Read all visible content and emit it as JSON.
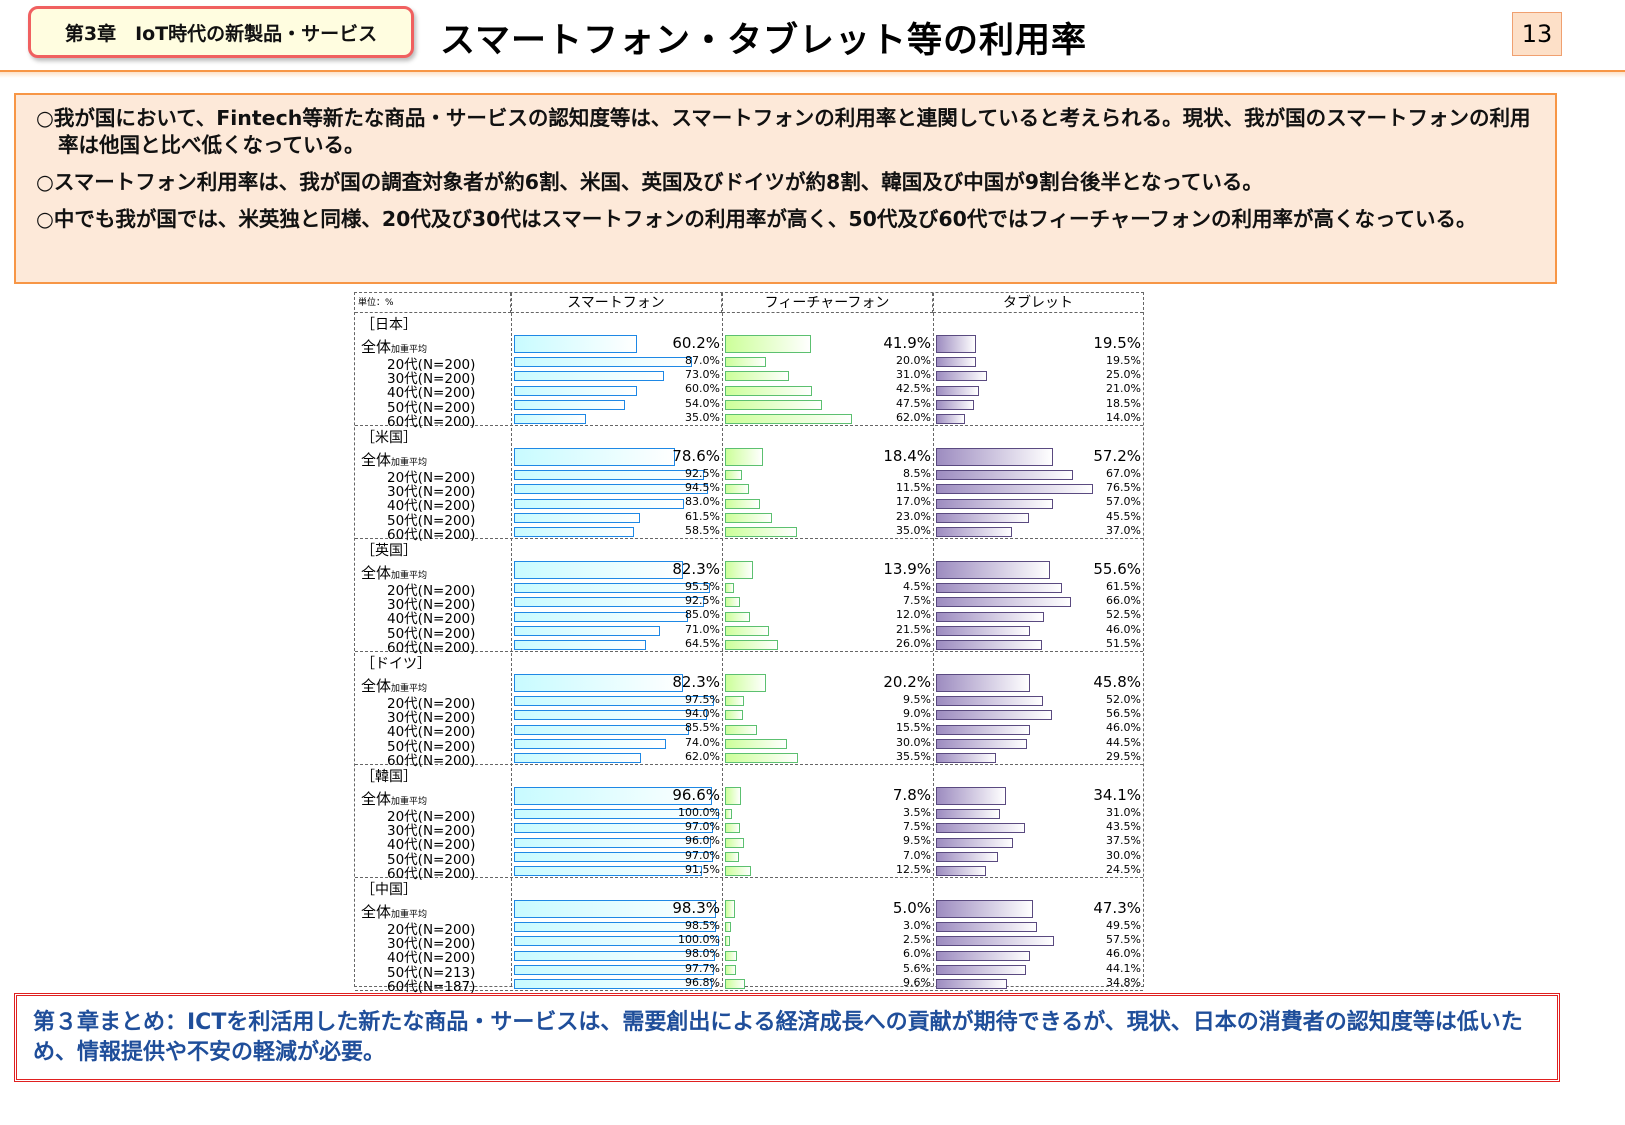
{
  "header": {
    "chapter": "第3章　IoT時代の新製品・サービス",
    "title": "スマートフォン・タブレット等の利用率",
    "page": "13"
  },
  "bullets": [
    "○我が国において、Fintech等新たな商品・サービスの認知度等は、スマートフォンの利用率と連関していると考えられる。現状、我が国のスマートフォンの利用率は他国と比べ低くなっている。",
    "○スマートフォン利用率は、我が国の調査対象者が約6割、米国、英国及びドイツが約8割、韓国及び中国が9割台後半となっている。",
    "○中でも我が国では、米英独と同様、20代及び30代はスマートフォンの利用率が高く、50代及び60代ではフィーチャーフォンの利用率が高くなっている。"
  ],
  "summary": "第３章まとめ：ICTを利活用した新たな商品・サービスは、需要創出による経済成長への貢献が期待できるが、現状、日本の消費者の認知度等は低いため、情報提供や不安の軽減が必要。",
  "chart_data": {
    "type": "bar",
    "unit_label": "単位：%",
    "columns": [
      "スマートフォン",
      "フィーチャーフォン",
      "タブレット"
    ],
    "colors": {
      "smartphone": "#1e88e5",
      "feature": "#5cc070",
      "tablet": "#5a4a80"
    },
    "overall_label": "全体",
    "overall_sub": "加重平均",
    "groups": [
      {
        "name": "［日本］",
        "rows": [
          {
            "label": "",
            "smartphone": 60.2,
            "feature": 41.9,
            "tablet": 19.5
          },
          {
            "label": "20代(N=200)",
            "smartphone": 87.0,
            "feature": 20.0,
            "tablet": 19.5
          },
          {
            "label": "30代(N=200)",
            "smartphone": 73.0,
            "feature": 31.0,
            "tablet": 25.0
          },
          {
            "label": "40代(N=200)",
            "smartphone": 60.0,
            "feature": 42.5,
            "tablet": 21.0
          },
          {
            "label": "50代(N=200)",
            "smartphone": 54.0,
            "feature": 47.5,
            "tablet": 18.5
          },
          {
            "label": "60代(N=200)",
            "smartphone": 35.0,
            "feature": 62.0,
            "tablet": 14.0
          }
        ]
      },
      {
        "name": "［米国］",
        "rows": [
          {
            "label": "",
            "smartphone": 78.6,
            "feature": 18.4,
            "tablet": 57.2
          },
          {
            "label": "20代(N=200)",
            "smartphone": 92.5,
            "feature": 8.5,
            "tablet": 67.0
          },
          {
            "label": "30代(N=200)",
            "smartphone": 94.5,
            "feature": 11.5,
            "tablet": 76.5
          },
          {
            "label": "40代(N=200)",
            "smartphone": 83.0,
            "feature": 17.0,
            "tablet": 57.0
          },
          {
            "label": "50代(N=200)",
            "smartphone": 61.5,
            "feature": 23.0,
            "tablet": 45.5
          },
          {
            "label": "60代(N=200)",
            "smartphone": 58.5,
            "feature": 35.0,
            "tablet": 37.0
          }
        ]
      },
      {
        "name": "［英国］",
        "rows": [
          {
            "label": "",
            "smartphone": 82.3,
            "feature": 13.9,
            "tablet": 55.6
          },
          {
            "label": "20代(N=200)",
            "smartphone": 95.5,
            "feature": 4.5,
            "tablet": 61.5
          },
          {
            "label": "30代(N=200)",
            "smartphone": 92.5,
            "feature": 7.5,
            "tablet": 66.0
          },
          {
            "label": "40代(N=200)",
            "smartphone": 85.0,
            "feature": 12.0,
            "tablet": 52.5
          },
          {
            "label": "50代(N=200)",
            "smartphone": 71.0,
            "feature": 21.5,
            "tablet": 46.0
          },
          {
            "label": "60代(N=200)",
            "smartphone": 64.5,
            "feature": 26.0,
            "tablet": 51.5
          }
        ]
      },
      {
        "name": "［ドイツ］",
        "rows": [
          {
            "label": "",
            "smartphone": 82.3,
            "feature": 20.2,
            "tablet": 45.8
          },
          {
            "label": "20代(N=200)",
            "smartphone": 97.5,
            "feature": 9.5,
            "tablet": 52.0
          },
          {
            "label": "30代(N=200)",
            "smartphone": 94.0,
            "feature": 9.0,
            "tablet": 56.5
          },
          {
            "label": "40代(N=200)",
            "smartphone": 85.5,
            "feature": 15.5,
            "tablet": 46.0
          },
          {
            "label": "50代(N=200)",
            "smartphone": 74.0,
            "feature": 30.0,
            "tablet": 44.5
          },
          {
            "label": "60代(N=200)",
            "smartphone": 62.0,
            "feature": 35.5,
            "tablet": 29.5
          }
        ]
      },
      {
        "name": "［韓国］",
        "rows": [
          {
            "label": "",
            "smartphone": 96.6,
            "feature": 7.8,
            "tablet": 34.1
          },
          {
            "label": "20代(N=200)",
            "smartphone": 100.0,
            "feature": 3.5,
            "tablet": 31.0
          },
          {
            "label": "30代(N=200)",
            "smartphone": 97.0,
            "feature": 7.5,
            "tablet": 43.5
          },
          {
            "label": "40代(N=200)",
            "smartphone": 96.0,
            "feature": 9.5,
            "tablet": 37.5
          },
          {
            "label": "50代(N=200)",
            "smartphone": 97.0,
            "feature": 7.0,
            "tablet": 30.0
          },
          {
            "label": "60代(N=200)",
            "smartphone": 91.5,
            "feature": 12.5,
            "tablet": 24.5
          }
        ]
      },
      {
        "name": "［中国］",
        "rows": [
          {
            "label": "",
            "smartphone": 98.3,
            "feature": 5.0,
            "tablet": 47.3
          },
          {
            "label": "20代(N=200)",
            "smartphone": 98.5,
            "feature": 3.0,
            "tablet": 49.5
          },
          {
            "label": "30代(N=200)",
            "smartphone": 100.0,
            "feature": 2.5,
            "tablet": 57.5
          },
          {
            "label": "40代(N=200)",
            "smartphone": 98.0,
            "feature": 6.0,
            "tablet": 46.0
          },
          {
            "label": "50代(N=213)",
            "smartphone": 97.7,
            "feature": 5.6,
            "tablet": 44.1
          },
          {
            "label": "60代(N=187)",
            "smartphone": 96.8,
            "feature": 9.6,
            "tablet": 34.8
          }
        ]
      }
    ]
  }
}
